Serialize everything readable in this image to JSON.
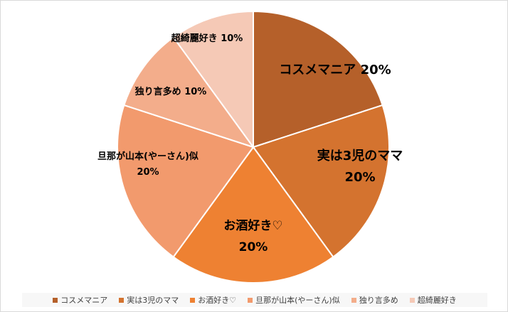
{
  "chart_data": {
    "type": "pie",
    "categories": [
      "コスメマニア",
      "実は3児のママ",
      "お酒好き♡",
      "旦那が山本(やーさん)似",
      "独り言多め",
      "超綺麗好き"
    ],
    "values": [
      20,
      20,
      20,
      20,
      10,
      10
    ],
    "data_labels": [
      {
        "name": "コスメマニア",
        "value": "20%"
      },
      {
        "name": "実は3児のママ",
        "value": "20%"
      },
      {
        "name": "お酒好き♡",
        "value": "20%"
      },
      {
        "name": "旦那が山本(やーさん)似",
        "value": "20%"
      },
      {
        "name": "独り言多め",
        "value": "10%"
      },
      {
        "name": "超綺麗好き",
        "value": "10%"
      }
    ],
    "colors": [
      "#b5602a",
      "#d4732f",
      "#ee8132",
      "#f29a6d",
      "#f3ad8b",
      "#f5c9b6"
    ],
    "legend_position": "bottom"
  }
}
